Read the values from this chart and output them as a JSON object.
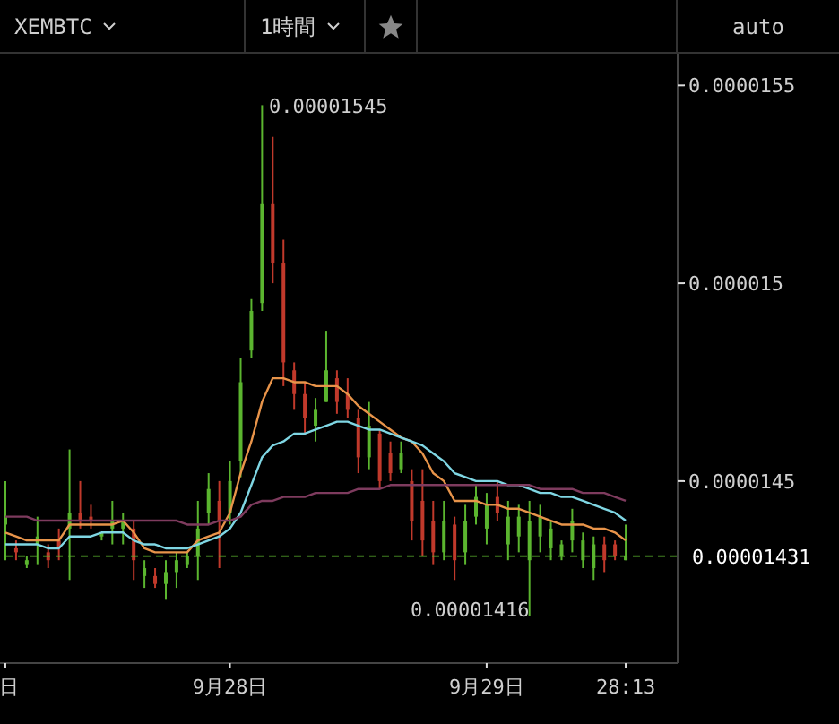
{
  "chart_data": {
    "type": "candlestick",
    "annotations": [
      "XEMBTC",
      "1時間",
      "auto",
      "0.00001545",
      "0.00001416"
    ],
    "categories": [
      "日",
      null,
      null,
      null,
      null,
      null,
      null,
      null,
      null,
      null,
      null,
      null,
      null,
      null,
      null,
      null,
      null,
      null,
      null,
      null,
      null,
      "9月28日",
      null,
      null,
      null,
      null,
      null,
      null,
      null,
      null,
      null,
      null,
      null,
      null,
      null,
      null,
      null,
      null,
      null,
      null,
      null,
      null,
      null,
      null,
      null,
      "9月29日",
      null,
      null,
      null,
      null,
      null,
      null,
      null,
      null,
      null,
      null,
      null,
      null,
      "28:13"
    ],
    "ohlc": [
      [
        1.439e-05,
        1.45e-05,
        1.43e-05,
        1.441e-05
      ],
      [
        1.433e-05,
        1.435e-05,
        1.43e-05,
        1.432e-05
      ],
      [
        1.429e-05,
        1.431e-05,
        1.428e-05,
        1.43e-05
      ],
      [
        1.434e-05,
        1.441e-05,
        1.429e-05,
        1.436e-05
      ],
      [
        1.432e-05,
        1.434e-05,
        1.428e-05,
        1.43e-05
      ],
      [
        1.435e-05,
        1.438e-05,
        1.43e-05,
        1.433e-05
      ],
      [
        1.438e-05,
        1.458e-05,
        1.425e-05,
        1.442e-05
      ],
      [
        1.442e-05,
        1.45e-05,
        1.438e-05,
        1.44e-05
      ],
      [
        1.441e-05,
        1.444e-05,
        1.438e-05,
        1.44e-05
      ],
      [
        1.436e-05,
        1.437e-05,
        1.435e-05,
        1.437e-05
      ],
      [
        1.438e-05,
        1.445e-05,
        1.434e-05,
        1.44e-05
      ],
      [
        1.438e-05,
        1.442e-05,
        1.434e-05,
        1.44e-05
      ],
      [
        1.438e-05,
        1.44e-05,
        1.425e-05,
        1.43e-05
      ],
      [
        1.426e-05,
        1.43e-05,
        1.423e-05,
        1.428e-05
      ],
      [
        1.426e-05,
        1.428e-05,
        1.423e-05,
        1.424e-05
      ],
      [
        1.424e-05,
        1.43e-05,
        1.42e-05,
        1.427e-05
      ],
      [
        1.427e-05,
        1.432e-05,
        1.423e-05,
        1.43e-05
      ],
      [
        1.429e-05,
        1.432e-05,
        1.428e-05,
        1.431e-05
      ],
      [
        1.431e-05,
        1.445e-05,
        1.425e-05,
        1.438e-05
      ],
      [
        1.442e-05,
        1.452e-05,
        1.439e-05,
        1.448e-05
      ],
      [
        1.445e-05,
        1.45e-05,
        1.428e-05,
        1.44e-05
      ],
      [
        1.442e-05,
        1.455e-05,
        1.439e-05,
        1.45e-05
      ],
      [
        1.455e-05,
        1.481e-05,
        1.451e-05,
        1.475e-05
      ],
      [
        1.483e-05,
        1.496e-05,
        1.481e-05,
        1.493e-05
      ],
      [
        1.495e-05,
        1.545e-05,
        1.493e-05,
        1.52e-05
      ],
      [
        1.52e-05,
        1.537e-05,
        1.5e-05,
        1.505e-05
      ],
      [
        1.505e-05,
        1.511e-05,
        1.474e-05,
        1.48e-05
      ],
      [
        1.478e-05,
        1.48e-05,
        1.468e-05,
        1.472e-05
      ],
      [
        1.472e-05,
        1.475e-05,
        1.462e-05,
        1.466e-05
      ],
      [
        1.464e-05,
        1.471e-05,
        1.46e-05,
        1.468e-05
      ],
      [
        1.47e-05,
        1.488e-05,
        1.47e-05,
        1.478e-05
      ],
      [
        1.476e-05,
        1.478e-05,
        1.467e-05,
        1.47e-05
      ],
      [
        1.472e-05,
        1.476e-05,
        1.466e-05,
        1.468e-05
      ],
      [
        1.466e-05,
        1.468e-05,
        1.452e-05,
        1.456e-05
      ],
      [
        1.456e-05,
        1.47e-05,
        1.453e-05,
        1.464e-05
      ],
      [
        1.462e-05,
        1.463e-05,
        1.448e-05,
        1.45e-05
      ],
      [
        1.457e-05,
        1.46e-05,
        1.45e-05,
        1.452e-05
      ],
      [
        1.453e-05,
        1.46e-05,
        1.452e-05,
        1.457e-05
      ],
      [
        1.45e-05,
        1.453e-05,
        1.435e-05,
        1.44e-05
      ],
      [
        1.445e-05,
        1.453e-05,
        1.431e-05,
        1.435e-05
      ],
      [
        1.44e-05,
        1.445e-05,
        1.429e-05,
        1.432e-05
      ],
      [
        1.432e-05,
        1.445e-05,
        1.43e-05,
        1.44e-05
      ],
      [
        1.439e-05,
        1.441e-05,
        1.425e-05,
        1.43e-05
      ],
      [
        1.432e-05,
        1.444e-05,
        1.429e-05,
        1.44e-05
      ],
      [
        1.441e-05,
        1.449e-05,
        1.439e-05,
        1.446e-05
      ],
      [
        1.438e-05,
        1.447e-05,
        1.434e-05,
        1.444e-05
      ],
      [
        1.446e-05,
        1.45e-05,
        1.44e-05,
        1.442e-05
      ],
      [
        1.434e-05,
        1.445e-05,
        1.43e-05,
        1.441e-05
      ],
      [
        1.436e-05,
        1.444e-05,
        1.432e-05,
        1.441e-05
      ],
      [
        1.43e-05,
        1.445e-05,
        1.416e-05,
        1.44e-05
      ],
      [
        1.436e-05,
        1.444e-05,
        1.432e-05,
        1.441e-05
      ],
      [
        1.433e-05,
        1.44e-05,
        1.43e-05,
        1.438e-05
      ],
      [
        1.431e-05,
        1.435e-05,
        1.43e-05,
        1.434e-05
      ],
      [
        1.435e-05,
        1.443e-05,
        1.432e-05,
        1.44e-05
      ],
      [
        1.43e-05,
        1.437e-05,
        1.428e-05,
        1.435e-05
      ],
      [
        1.428e-05,
        1.436e-05,
        1.425e-05,
        1.434e-05
      ],
      [
        1.434e-05,
        1.436e-05,
        1.427e-05,
        1.43e-05
      ],
      [
        1.434e-05,
        1.435e-05,
        1.43e-05,
        1.431e-05
      ],
      [
        1.43e-05,
        1.439e-05,
        1.43e-05,
        1.431e-05
      ]
    ],
    "colors": [
      "#5bb52f",
      "#c0392b",
      "#5bb52f",
      "#5bb52f",
      "#c0392b",
      "#c0392b",
      "#5bb52f",
      "#c0392b",
      "#c0392b",
      "#5bb52f",
      "#5bb52f",
      "#5bb52f",
      "#c0392b",
      "#5bb52f",
      "#c0392b",
      "#5bb52f",
      "#5bb52f",
      "#5bb52f",
      "#5bb52f",
      "#5bb52f",
      "#c0392b",
      "#5bb52f",
      "#5bb52f",
      "#5bb52f",
      "#5bb52f",
      "#c0392b",
      "#c0392b",
      "#c0392b",
      "#c0392b",
      "#5bb52f",
      "#5bb52f",
      "#c0392b",
      "#c0392b",
      "#c0392b",
      "#5bb52f",
      "#c0392b",
      "#c0392b",
      "#5bb52f",
      "#c0392b",
      "#c0392b",
      "#c0392b",
      "#5bb52f",
      "#c0392b",
      "#5bb52f",
      "#5bb52f",
      "#5bb52f",
      "#c0392b",
      "#5bb52f",
      "#5bb52f",
      "#5bb52f",
      "#5bb52f",
      "#5bb52f",
      "#5bb52f",
      "#5bb52f",
      "#5bb52f",
      "#5bb52f",
      "#c0392b",
      "#c0392b",
      "#5bb52f"
    ],
    "series": [
      {
        "type": "line",
        "color": "#e8944a",
        "values": [
          1.437e-05,
          1.436e-05,
          1.435e-05,
          1.435e-05,
          1.435e-05,
          1.435e-05,
          1.439e-05,
          1.439e-05,
          1.439e-05,
          1.439e-05,
          1.439e-05,
          1.44e-05,
          1.437e-05,
          1.433e-05,
          1.432e-05,
          1.432e-05,
          1.432e-05,
          1.432e-05,
          1.435e-05,
          1.436e-05,
          1.437e-05,
          1.442e-05,
          1.452e-05,
          1.46e-05,
          1.47e-05,
          1.476e-05,
          1.476e-05,
          1.475e-05,
          1.475e-05,
          1.474e-05,
          1.474e-05,
          1.474e-05,
          1.472e-05,
          1.469e-05,
          1.467e-05,
          1.465e-05,
          1.463e-05,
          1.461e-05,
          1.46e-05,
          1.457e-05,
          1.452e-05,
          1.45e-05,
          1.445e-05,
          1.445e-05,
          1.445e-05,
          1.444e-05,
          1.444e-05,
          1.443e-05,
          1.443e-05,
          1.442e-05,
          1.441e-05,
          1.44e-05,
          1.439e-05,
          1.439e-05,
          1.439e-05,
          1.438e-05,
          1.438e-05,
          1.437e-05,
          1.435e-05
        ]
      },
      {
        "type": "line",
        "color": "#7fd6e3",
        "values": [
          1.434e-05,
          1.434e-05,
          1.434e-05,
          1.434e-05,
          1.433e-05,
          1.433e-05,
          1.436e-05,
          1.436e-05,
          1.436e-05,
          1.437e-05,
          1.437e-05,
          1.437e-05,
          1.435e-05,
          1.434e-05,
          1.434e-05,
          1.433e-05,
          1.433e-05,
          1.433e-05,
          1.434e-05,
          1.435e-05,
          1.436e-05,
          1.438e-05,
          1.442e-05,
          1.449e-05,
          1.456e-05,
          1.459e-05,
          1.46e-05,
          1.462e-05,
          1.462e-05,
          1.463e-05,
          1.464e-05,
          1.465e-05,
          1.465e-05,
          1.464e-05,
          1.463e-05,
          1.463e-05,
          1.462e-05,
          1.461e-05,
          1.46e-05,
          1.459e-05,
          1.457e-05,
          1.455e-05,
          1.452e-05,
          1.451e-05,
          1.45e-05,
          1.45e-05,
          1.45e-05,
          1.449e-05,
          1.449e-05,
          1.448e-05,
          1.447e-05,
          1.447e-05,
          1.446e-05,
          1.446e-05,
          1.445e-05,
          1.444e-05,
          1.443e-05,
          1.442e-05,
          1.44e-05
        ]
      },
      {
        "type": "line",
        "color": "#7e3b5e",
        "values": [
          1.441e-05,
          1.441e-05,
          1.441e-05,
          1.44e-05,
          1.44e-05,
          1.44e-05,
          1.44e-05,
          1.44e-05,
          1.44e-05,
          1.44e-05,
          1.44e-05,
          1.44e-05,
          1.44e-05,
          1.44e-05,
          1.44e-05,
          1.44e-05,
          1.44e-05,
          1.439e-05,
          1.439e-05,
          1.439e-05,
          1.44e-05,
          1.44e-05,
          1.441e-05,
          1.444e-05,
          1.445e-05,
          1.445e-05,
          1.446e-05,
          1.446e-05,
          1.446e-05,
          1.447e-05,
          1.447e-05,
          1.447e-05,
          1.447e-05,
          1.448e-05,
          1.448e-05,
          1.448e-05,
          1.449e-05,
          1.449e-05,
          1.449e-05,
          1.449e-05,
          1.449e-05,
          1.449e-05,
          1.449e-05,
          1.449e-05,
          1.449e-05,
          1.449e-05,
          1.449e-05,
          1.449e-05,
          1.449e-05,
          1.449e-05,
          1.448e-05,
          1.448e-05,
          1.448e-05,
          1.448e-05,
          1.447e-05,
          1.447e-05,
          1.447e-05,
          1.446e-05,
          1.445e-05
        ]
      }
    ],
    "ylim": [
      1.404e-05,
      1.558e-05
    ],
    "yticks": [
      {
        "value": 1.45e-05,
        "label": "0.0000145"
      },
      {
        "value": 1.5e-05,
        "label": "0.000015"
      },
      {
        "value": 1.55e-05,
        "label": "0.0000155"
      }
    ],
    "ref_lines": [
      {
        "axis": "y",
        "value": 1.431e-05,
        "label": "0.00001431",
        "color": "#5bb52f",
        "line_style": "dashed"
      }
    ]
  }
}
